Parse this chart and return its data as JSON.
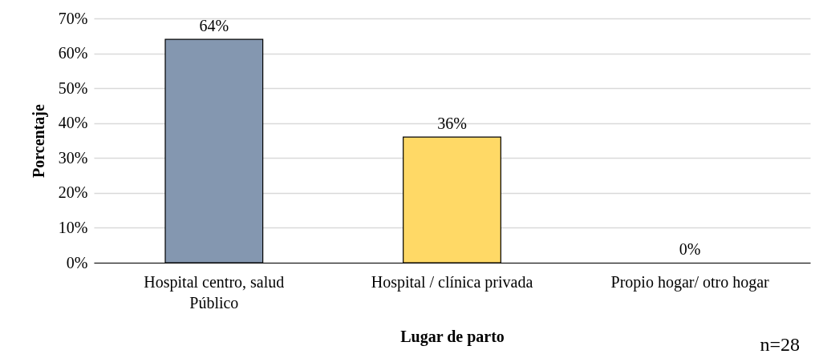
{
  "chart_data": {
    "type": "bar",
    "xlabel": "Lugar de parto",
    "ylabel": "Porcentaje",
    "categories": [
      "Hospital centro, salud Público",
      "Hospital / clínica privada",
      "Propio hogar/ otro hogar"
    ],
    "values": [
      64,
      36,
      0
    ],
    "colors": [
      "#8497b0",
      "#ffd966",
      "#a9d18e"
    ],
    "value_labels": [
      "64%",
      "36%",
      "0%"
    ],
    "ylim": [
      0,
      70
    ],
    "yticks": [
      {
        "value": 0,
        "label": "0%"
      },
      {
        "value": 10,
        "label": "10%"
      },
      {
        "value": 20,
        "label": "20%"
      },
      {
        "value": 30,
        "label": "30%"
      },
      {
        "value": 40,
        "label": "40%"
      },
      {
        "value": 50,
        "label": "50%"
      },
      {
        "value": 60,
        "label": "60%"
      },
      {
        "value": 70,
        "label": "70%"
      }
    ],
    "grid": "y",
    "annotations": [
      "n=28"
    ]
  }
}
